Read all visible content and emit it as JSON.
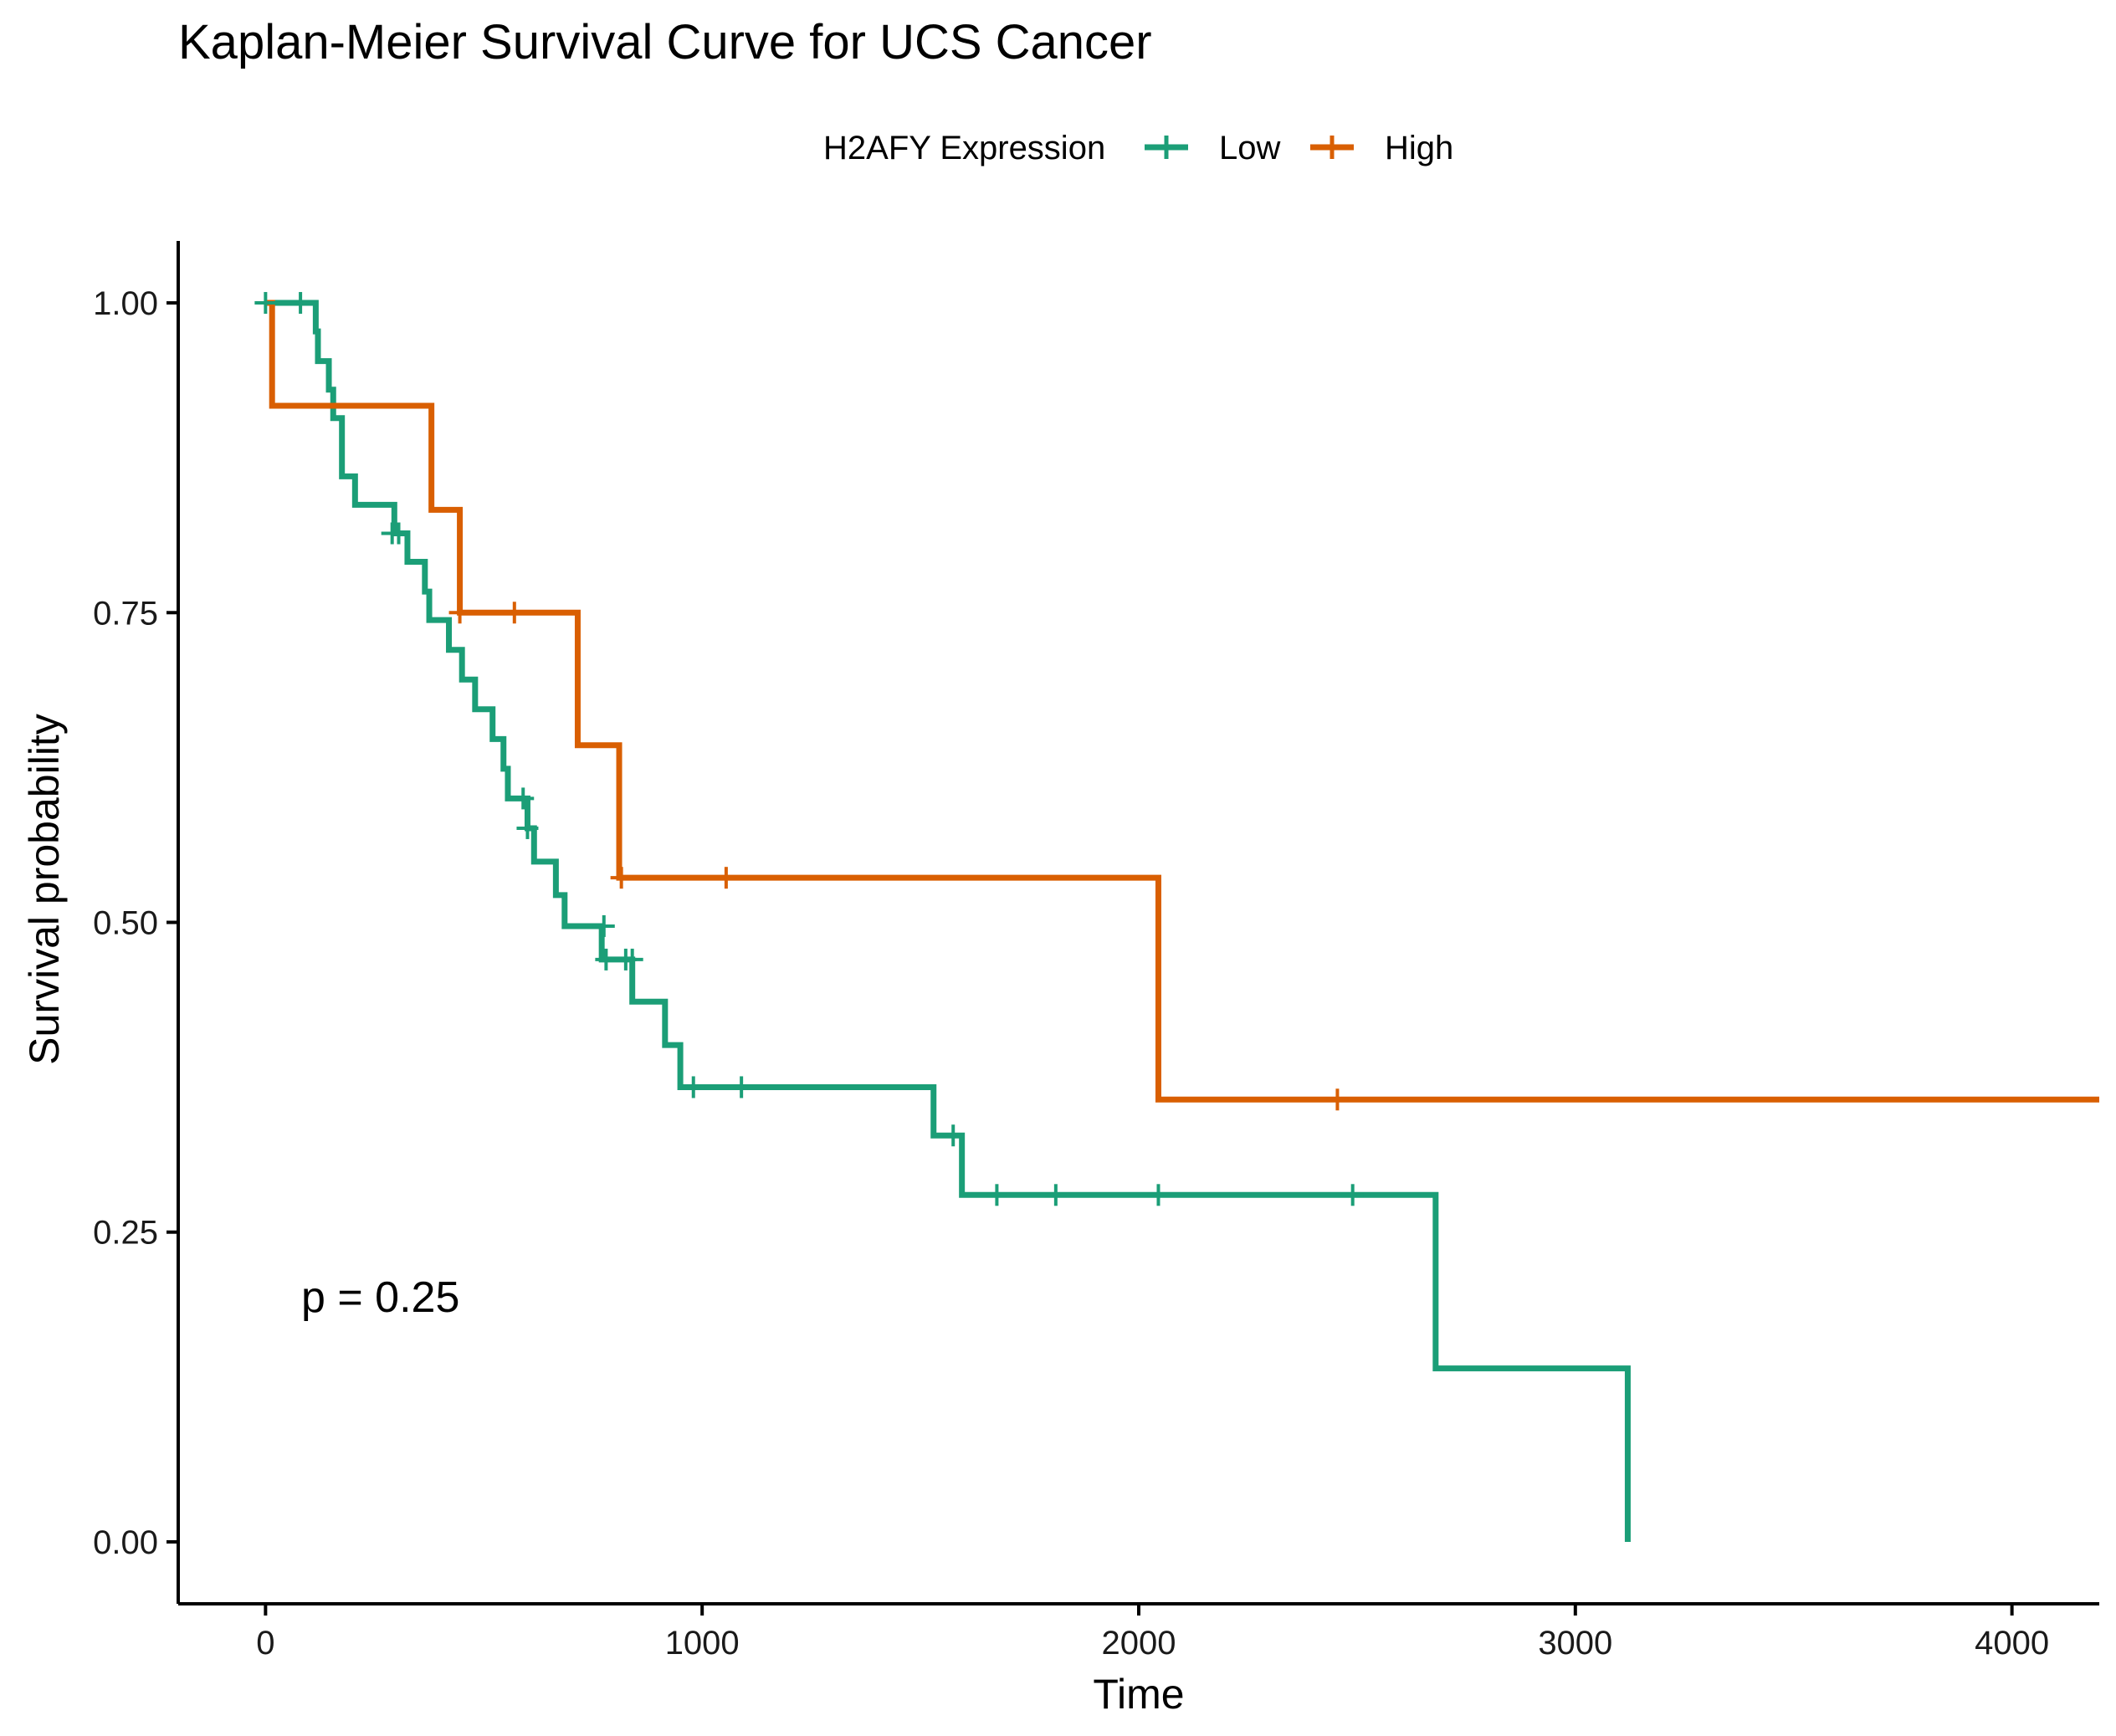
{
  "chart_data": {
    "type": "line",
    "title": "Kaplan-Meier Survival Curve for UCS Cancer",
    "xlabel": "Time",
    "ylabel": "Survival probability",
    "xlim": [
      -200,
      4200
    ],
    "ylim": [
      -0.05,
      1.05
    ],
    "x_ticks": [
      0,
      1000,
      2000,
      3000,
      4000
    ],
    "x_tick_labels": [
      "0",
      "1000",
      "2000",
      "3000",
      "4000"
    ],
    "y_ticks": [
      0,
      0.25,
      0.5,
      0.75,
      1
    ],
    "y_tick_labels": [
      "0.00",
      "0.25",
      "0.50",
      "0.75",
      "1.00"
    ],
    "grid": false,
    "legend": {
      "title": "H2AFY Expression",
      "position": "top"
    },
    "annotation": "p = 0.25",
    "series": [
      {
        "name": "Low",
        "color": "#1b9e77",
        "steps": [
          [
            0,
            1.0
          ],
          [
            115,
            0.977
          ],
          [
            120,
            0.953
          ],
          [
            145,
            0.93
          ],
          [
            155,
            0.907
          ],
          [
            175,
            0.86
          ],
          [
            205,
            0.837
          ],
          [
            295,
            0.814
          ],
          [
            325,
            0.791
          ],
          [
            365,
            0.767
          ],
          [
            375,
            0.744
          ],
          [
            420,
            0.72
          ],
          [
            450,
            0.696
          ],
          [
            480,
            0.672
          ],
          [
            520,
            0.648
          ],
          [
            545,
            0.624
          ],
          [
            555,
            0.6
          ],
          [
            600,
            0.576
          ],
          [
            615,
            0.549
          ],
          [
            665,
            0.522
          ],
          [
            685,
            0.497
          ],
          [
            770,
            0.47
          ],
          [
            840,
            0.436
          ],
          [
            915,
            0.401
          ],
          [
            950,
            0.367
          ],
          [
            1530,
            0.328
          ],
          [
            1595,
            0.28
          ],
          [
            2680,
            0.14
          ],
          [
            3120,
            0.0
          ]
        ],
        "end_x": 3120,
        "censored": [
          [
            0,
            1.0
          ],
          [
            80,
            1.0
          ],
          [
            290,
            0.814
          ],
          [
            305,
            0.814
          ],
          [
            590,
            0.6
          ],
          [
            600,
            0.576
          ],
          [
            775,
            0.497
          ],
          [
            780,
            0.47
          ],
          [
            825,
            0.47
          ],
          [
            840,
            0.47
          ],
          [
            980,
            0.367
          ],
          [
            1090,
            0.367
          ],
          [
            1575,
            0.328
          ],
          [
            1675,
            0.28
          ],
          [
            1810,
            0.28
          ],
          [
            2045,
            0.28
          ],
          [
            2490,
            0.28
          ]
        ]
      },
      {
        "name": "High",
        "color": "#d95f02",
        "steps": [
          [
            0,
            1.0
          ],
          [
            15,
            0.917
          ],
          [
            380,
            0.833
          ],
          [
            445,
            0.75
          ],
          [
            715,
            0.643
          ],
          [
            810,
            0.536
          ],
          [
            2045,
            0.357
          ]
        ],
        "end_x": 4200,
        "censored": [
          [
            445,
            0.75
          ],
          [
            570,
            0.75
          ],
          [
            815,
            0.536
          ],
          [
            1055,
            0.536
          ],
          [
            2455,
            0.357
          ]
        ]
      }
    ]
  }
}
